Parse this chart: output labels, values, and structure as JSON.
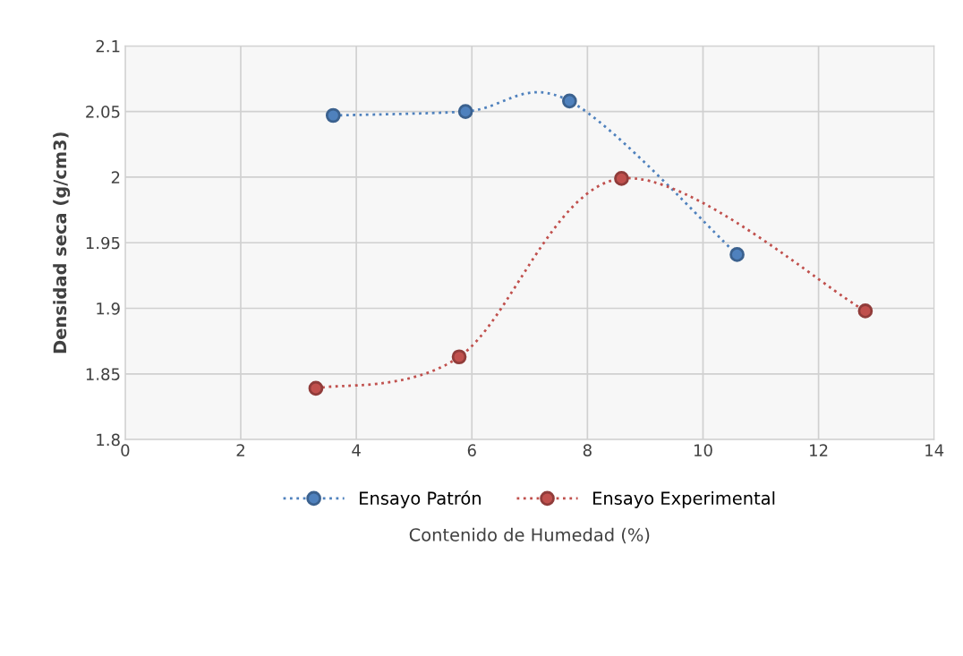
{
  "chart_data": {
    "type": "line",
    "xlabel": "Contenido de Humedad (%)",
    "ylabel": "Densidad seca (g/cm3)",
    "xlim": [
      0,
      14
    ],
    "xticks": [
      0,
      2,
      4,
      6,
      8,
      10,
      12,
      14
    ],
    "ylim": [
      1.8,
      2.1
    ],
    "yticks": [
      1.8,
      1.85,
      1.9,
      1.95,
      2,
      2.05,
      2.1
    ],
    "grid": true,
    "legend": "bottom",
    "marker": "circle",
    "line_style": "dotted",
    "series": [
      {
        "name": "Ensayo Patrón",
        "color": "#4f81bd",
        "x": [
          3.6,
          5.89,
          7.69,
          10.59
        ],
        "values": [
          2.047,
          2.05,
          2.058,
          1.941
        ]
      },
      {
        "name": "Ensayo Experimental",
        "color": "#c0504d",
        "x": [
          3.3,
          5.78,
          8.59,
          12.81
        ],
        "values": [
          1.839,
          1.863,
          1.999,
          1.898
        ]
      }
    ]
  }
}
